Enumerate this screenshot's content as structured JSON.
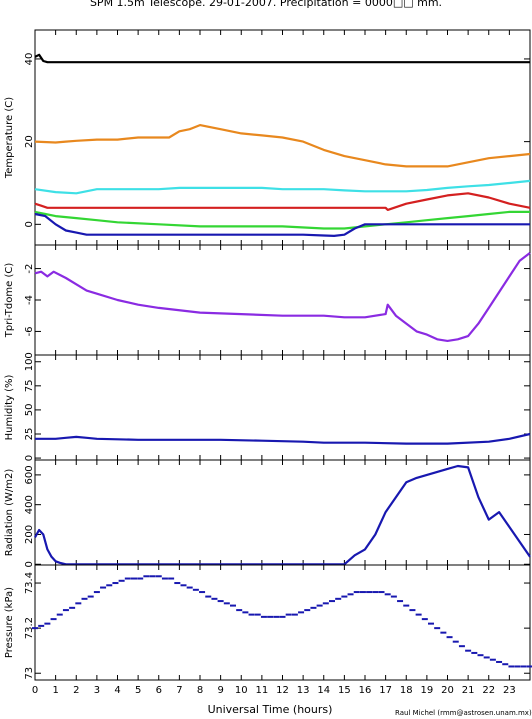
{
  "title": "SPM 1.5m Telescope. 29-01-2007. Precipitation = 0000□□ mm.",
  "xlabel": "Universal Time (hours)",
  "credit": "Raul Michel (rmm@astrosen.unam.mx)",
  "x_ticks": [
    "0",
    "1",
    "2",
    "3",
    "4",
    "5",
    "6",
    "7",
    "8",
    "9",
    "10",
    "11",
    "12",
    "13",
    "14",
    "15",
    "16",
    "17",
    "18",
    "19",
    "20",
    "21",
    "22",
    "23"
  ],
  "chart_data": [
    {
      "type": "line",
      "ylabel": "Temperature (C)",
      "xlim": [
        0,
        24
      ],
      "ylim": [
        -5,
        47
      ],
      "y_ticks": [
        0,
        20,
        40
      ],
      "series": [
        {
          "color": "#000000",
          "x": [
            0,
            0.2,
            0.4,
            0.6,
            24
          ],
          "y": [
            40.5,
            41,
            39.5,
            39.2,
            39.2
          ]
        },
        {
          "color": "#e8881e",
          "x": [
            0,
            1,
            1.5,
            2,
            3,
            4,
            5,
            6.5,
            7,
            7.5,
            8,
            9,
            10,
            11,
            12,
            13,
            14,
            15,
            16,
            17,
            18,
            19,
            20,
            21,
            22,
            23,
            24
          ],
          "y": [
            20,
            19.8,
            20,
            20.2,
            20.5,
            20.5,
            21,
            21,
            22.5,
            23,
            24,
            23,
            22,
            21.5,
            21,
            20,
            18,
            16.5,
            15.5,
            14.5,
            14,
            14,
            14,
            15,
            16,
            16.5,
            17
          ]
        },
        {
          "color": "#3ee0e6",
          "x": [
            0,
            1,
            2,
            3,
            4,
            5,
            6,
            7,
            8,
            9,
            10,
            11,
            12,
            13,
            14,
            15,
            16,
            17,
            18,
            19,
            20,
            21,
            22,
            23,
            24
          ],
          "y": [
            8.5,
            7.8,
            7.5,
            8.5,
            8.5,
            8.5,
            8.5,
            8.8,
            8.8,
            8.8,
            8.8,
            8.8,
            8.5,
            8.5,
            8.5,
            8.2,
            8,
            8,
            8,
            8.3,
            8.8,
            9.2,
            9.5,
            10,
            10.5
          ]
        },
        {
          "color": "#d42020",
          "x": [
            0,
            0.3,
            0.6,
            17,
            17.1,
            18,
            19,
            20,
            21,
            22,
            23,
            24
          ],
          "y": [
            5,
            4.5,
            4,
            4,
            3.5,
            5,
            6,
            7,
            7.5,
            6.5,
            5,
            4
          ]
        },
        {
          "color": "#34d634",
          "x": [
            0,
            0.5,
            1,
            2,
            3,
            4,
            6,
            8,
            10,
            12,
            14,
            15,
            16,
            17,
            18,
            19,
            20,
            21,
            22,
            23,
            24
          ],
          "y": [
            3,
            2.5,
            2,
            1.5,
            1,
            0.5,
            0,
            -0.5,
            -0.5,
            -0.5,
            -1,
            -1,
            -0.5,
            0,
            0.5,
            1,
            1.5,
            2,
            2.5,
            3,
            3
          ]
        },
        {
          "color": "#1818b0",
          "x": [
            0,
            0.5,
            1,
            1.5,
            2,
            2.5,
            3,
            5,
            7,
            9,
            11,
            13,
            14,
            14.5,
            15,
            15.5,
            16,
            17,
            18,
            19,
            20,
            21,
            22,
            23,
            24
          ],
          "y": [
            2.5,
            2,
            0,
            -1.5,
            -2,
            -2.5,
            -2.5,
            -2.5,
            -2.5,
            -2.5,
            -2.5,
            -2.5,
            -2.7,
            -2.8,
            -2.5,
            -1,
            0,
            0,
            0,
            0,
            0,
            0,
            0,
            0,
            0
          ]
        }
      ]
    },
    {
      "type": "line",
      "ylabel": "Tpri-Tdome (C)",
      "xlim": [
        0,
        24
      ],
      "ylim": [
        -7.5,
        -0.5
      ],
      "y_ticks": [
        -6,
        -4,
        -2
      ],
      "series": [
        {
          "color": "#8a2be2",
          "x": [
            0,
            0.3,
            0.6,
            0.9,
            1.2,
            1.5,
            2,
            2.5,
            3,
            4,
            5,
            6,
            8,
            10,
            12,
            14,
            15,
            16,
            17,
            17.1,
            17.5,
            18,
            18.5,
            19,
            19.5,
            20,
            20.5,
            21,
            21.5,
            22,
            22.5,
            23,
            23.5,
            24
          ],
          "y": [
            -2.3,
            -2.2,
            -2.5,
            -2.2,
            -2.4,
            -2.6,
            -3,
            -3.4,
            -3.6,
            -4,
            -4.3,
            -4.5,
            -4.8,
            -4.9,
            -5,
            -5,
            -5.1,
            -5.1,
            -4.9,
            -4.3,
            -5,
            -5.5,
            -6,
            -6.2,
            -6.5,
            -6.6,
            -6.5,
            -6.3,
            -5.5,
            -4.5,
            -3.5,
            -2.5,
            -1.5,
            -1
          ]
        }
      ]
    },
    {
      "type": "line",
      "ylabel": "Humidity (%)",
      "xlim": [
        0,
        24
      ],
      "ylim": [
        -2,
        107
      ],
      "y_ticks": [
        0,
        25,
        50,
        75,
        100
      ],
      "y_tick_labels": [
        "0",
        "25",
        "50",
        "75",
        "100"
      ],
      "series": [
        {
          "color": "#1818b0",
          "x": [
            0,
            1,
            1.5,
            2,
            2.5,
            3,
            5,
            7,
            9,
            11,
            13,
            14,
            16,
            18,
            20,
            22,
            23,
            24
          ],
          "y": [
            20,
            20,
            21,
            22,
            21,
            20,
            19,
            19,
            19,
            18,
            17,
            16,
            16,
            15,
            15,
            17,
            20,
            25
          ]
        }
      ]
    },
    {
      "type": "line",
      "ylabel": "Radiation (W/m2)",
      "xlim": [
        0,
        24
      ],
      "ylim": [
        -5,
        700
      ],
      "y_ticks": [
        0,
        200,
        400,
        600
      ],
      "series": [
        {
          "color": "#1818b0",
          "x": [
            0,
            0.2,
            0.4,
            0.6,
            0.8,
            1,
            1.2,
            1.5,
            2,
            15,
            15.5,
            16,
            16.5,
            17,
            17.5,
            18,
            18.5,
            19,
            19.5,
            20,
            20.5,
            21,
            21.5,
            22,
            22.5,
            23,
            23.5,
            24
          ],
          "y": [
            180,
            230,
            200,
            100,
            50,
            20,
            10,
            0,
            0,
            0,
            60,
            100,
            200,
            350,
            450,
            550,
            580,
            600,
            620,
            640,
            660,
            650,
            450,
            300,
            350,
            250,
            150,
            50
          ]
        }
      ]
    },
    {
      "type": "scatter",
      "ylabel": "Pressure (kPa)",
      "xlim": [
        0,
        24
      ],
      "ylim": [
        72.97,
        73.48
      ],
      "y_ticks": [
        73.0,
        73.2,
        73.4
      ],
      "y_tick_labels": [
        "73",
        "73.2",
        "73.4"
      ],
      "series": [
        {
          "color": "#1818b0",
          "x": [
            0,
            0.3,
            0.6,
            0.9,
            1.2,
            1.5,
            1.8,
            2.1,
            2.4,
            2.7,
            3,
            3.3,
            3.6,
            3.9,
            4.2,
            4.5,
            4.8,
            5.1,
            5.4,
            5.7,
            6,
            6.3,
            6.6,
            6.9,
            7.2,
            7.5,
            7.8,
            8.1,
            8.4,
            8.7,
            9,
            9.3,
            9.6,
            9.9,
            10.2,
            10.5,
            10.8,
            11.1,
            11.4,
            11.7,
            12,
            12.3,
            12.6,
            12.9,
            13.2,
            13.5,
            13.8,
            14.1,
            14.4,
            14.7,
            15,
            15.3,
            15.6,
            15.9,
            16.2,
            16.5,
            16.8,
            17.1,
            17.4,
            17.7,
            18,
            18.3,
            18.6,
            18.9,
            19.2,
            19.5,
            19.8,
            20.1,
            20.4,
            20.7,
            21,
            21.3,
            21.6,
            21.9,
            22.2,
            22.5,
            22.8,
            23.1,
            23.4,
            23.7,
            24
          ],
          "y": [
            73.2,
            73.21,
            73.22,
            73.24,
            73.26,
            73.28,
            73.29,
            73.31,
            73.33,
            73.34,
            73.36,
            73.38,
            73.39,
            73.4,
            73.41,
            73.42,
            73.42,
            73.42,
            73.43,
            73.43,
            73.43,
            73.42,
            73.42,
            73.4,
            73.39,
            73.38,
            73.37,
            73.36,
            73.34,
            73.33,
            73.32,
            73.31,
            73.3,
            73.28,
            73.27,
            73.26,
            73.26,
            73.25,
            73.25,
            73.25,
            73.25,
            73.26,
            73.26,
            73.27,
            73.28,
            73.29,
            73.3,
            73.31,
            73.32,
            73.33,
            73.34,
            73.35,
            73.36,
            73.36,
            73.36,
            73.36,
            73.36,
            73.35,
            73.34,
            73.32,
            73.3,
            73.28,
            73.26,
            73.24,
            73.22,
            73.2,
            73.18,
            73.16,
            73.14,
            73.12,
            73.1,
            73.09,
            73.08,
            73.07,
            73.06,
            73.05,
            73.04,
            73.03,
            73.03,
            73.03,
            73.03
          ]
        }
      ]
    }
  ]
}
